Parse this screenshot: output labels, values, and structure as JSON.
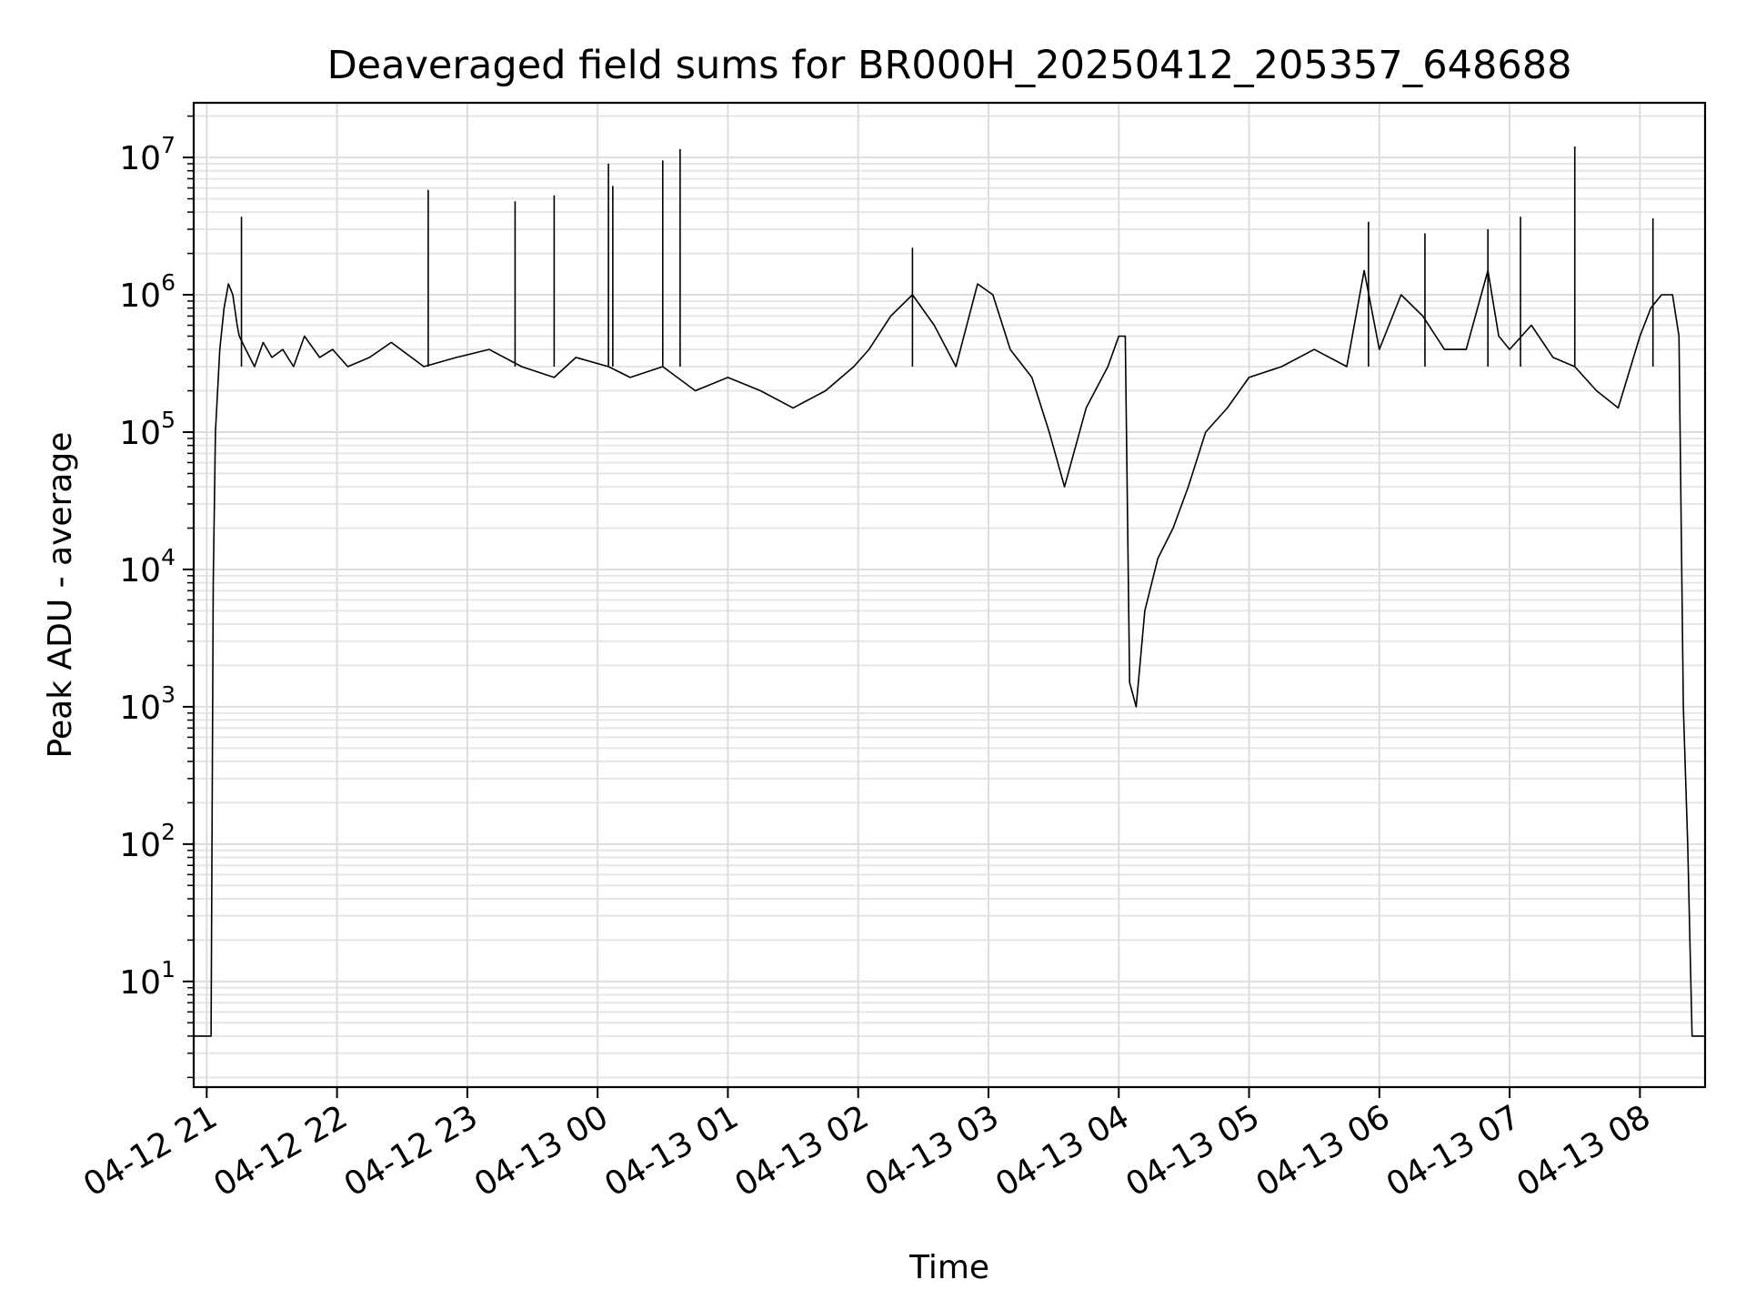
{
  "chart_data": {
    "type": "line",
    "title": "Deaveraged field sums for BR000H_20250412_205357_648688",
    "xlabel": "Time",
    "ylabel": "Peak ADU - average",
    "yscale": "log",
    "ylim": [
      1.7,
      25000000
    ],
    "xlim": [
      "2025-04-12 20:54",
      "2025-04-13 08:30"
    ],
    "grid": "on (major and minor)",
    "x_ticks": [
      "04-12 21",
      "04-12 22",
      "04-12 23",
      "04-13 00",
      "04-13 01",
      "04-13 02",
      "04-13 03",
      "04-13 04",
      "04-13 05",
      "04-13 06",
      "04-13 07",
      "04-13 08"
    ],
    "y_ticks": [
      {
        "base": "10",
        "exp": "1",
        "value": 10
      },
      {
        "base": "10",
        "exp": "2",
        "value": 100
      },
      {
        "base": "10",
        "exp": "3",
        "value": 1000
      },
      {
        "base": "10",
        "exp": "4",
        "value": 10000
      },
      {
        "base": "10",
        "exp": "5",
        "value": 100000
      },
      {
        "base": "10",
        "exp": "6",
        "value": 1000000
      },
      {
        "base": "10",
        "exp": "7",
        "value": 10000000
      }
    ],
    "series": [
      {
        "color": "#000000",
        "x": [
          "2025-04-12 20:54",
          "2025-04-12 21:02",
          "2025-04-12 21:03",
          "2025-04-12 21:04",
          "2025-04-12 21:06",
          "2025-04-12 21:08",
          "2025-04-12 21:10",
          "2025-04-12 21:12",
          "2025-04-12 21:14",
          "2025-04-12 21:15",
          "2025-04-12 21:18",
          "2025-04-12 21:22",
          "2025-04-12 21:26",
          "2025-04-12 21:30",
          "2025-04-12 21:35",
          "2025-04-12 21:40",
          "2025-04-12 21:45",
          "2025-04-12 21:52",
          "2025-04-12 21:58",
          "2025-04-12 22:05",
          "2025-04-12 22:15",
          "2025-04-12 22:25",
          "2025-04-12 22:40",
          "2025-04-12 22:55",
          "2025-04-12 23:10",
          "2025-04-12 23:25",
          "2025-04-12 23:40",
          "2025-04-12 23:50",
          "2025-04-13 00:05",
          "2025-04-13 00:15",
          "2025-04-13 00:30",
          "2025-04-13 00:45",
          "2025-04-13 01:00",
          "2025-04-13 01:15",
          "2025-04-13 01:30",
          "2025-04-13 01:45",
          "2025-04-13 01:58",
          "2025-04-13 02:05",
          "2025-04-13 02:15",
          "2025-04-13 02:25",
          "2025-04-13 02:35",
          "2025-04-13 02:45",
          "2025-04-13 02:55",
          "2025-04-13 03:02",
          "2025-04-13 03:10",
          "2025-04-13 03:20",
          "2025-04-13 03:28",
          "2025-04-13 03:35",
          "2025-04-13 03:45",
          "2025-04-13 03:55",
          "2025-04-13 04:00",
          "2025-04-13 04:03",
          "2025-04-13 04:05",
          "2025-04-13 04:08",
          "2025-04-13 04:12",
          "2025-04-13 04:18",
          "2025-04-13 04:25",
          "2025-04-13 04:32",
          "2025-04-13 04:40",
          "2025-04-13 04:50",
          "2025-04-13 05:00",
          "2025-04-13 05:15",
          "2025-04-13 05:30",
          "2025-04-13 05:45",
          "2025-04-13 05:53",
          "2025-04-13 06:00",
          "2025-04-13 06:10",
          "2025-04-13 06:20",
          "2025-04-13 06:30",
          "2025-04-13 06:40",
          "2025-04-13 06:50",
          "2025-04-13 06:55",
          "2025-04-13 07:00",
          "2025-04-13 07:10",
          "2025-04-13 07:20",
          "2025-04-13 07:30",
          "2025-04-13 07:40",
          "2025-04-13 07:50",
          "2025-04-13 08:00",
          "2025-04-13 08:05",
          "2025-04-13 08:10",
          "2025-04-13 08:15",
          "2025-04-13 08:18",
          "2025-04-13 08:20",
          "2025-04-13 08:22",
          "2025-04-13 08:24",
          "2025-04-13 08:30"
        ],
        "y": [
          4,
          4,
          8000,
          100000,
          400000,
          800000,
          1200000,
          1000000,
          600000,
          500000,
          400000,
          300000,
          450000,
          350000,
          400000,
          300000,
          500000,
          350000,
          400000,
          300000,
          350000,
          450000,
          300000,
          350000,
          400000,
          300000,
          250000,
          350000,
          300000,
          250000,
          300000,
          200000,
          250000,
          200000,
          150000,
          200000,
          300000,
          400000,
          700000,
          1000000,
          600000,
          300000,
          1200000,
          1000000,
          400000,
          250000,
          100000,
          40000,
          150000,
          300000,
          500000,
          500000,
          1500,
          1000,
          5000,
          12000,
          20000,
          40000,
          100000,
          150000,
          250000,
          300000,
          400000,
          300000,
          1500000,
          400000,
          1000000,
          700000,
          400000,
          400000,
          1500000,
          500000,
          400000,
          600000,
          350000,
          300000,
          200000,
          150000,
          500000,
          800000,
          1000000,
          1000000,
          500000,
          1000,
          100,
          4,
          4
        ]
      }
    ],
    "annotations": [
      {
        "x": "2025-04-12 21:16",
        "y": 3700000
      },
      {
        "x": "2025-04-12 22:42",
        "y": 5800000
      },
      {
        "x": "2025-04-12 23:22",
        "y": 4800000
      },
      {
        "x": "2025-04-12 23:40",
        "y": 5300000
      },
      {
        "x": "2025-04-13 00:05",
        "y": 9000000
      },
      {
        "x": "2025-04-13 00:07",
        "y": 6200000
      },
      {
        "x": "2025-04-13 00:30",
        "y": 9500000
      },
      {
        "x": "2025-04-13 00:38",
        "y": 11500000
      },
      {
        "x": "2025-04-13 02:25",
        "y": 2200000
      },
      {
        "x": "2025-04-13 05:55",
        "y": 3400000
      },
      {
        "x": "2025-04-13 06:21",
        "y": 2800000
      },
      {
        "x": "2025-04-13 06:50",
        "y": 3000000
      },
      {
        "x": "2025-04-13 07:05",
        "y": 3700000
      },
      {
        "x": "2025-04-13 07:30",
        "y": 12000000
      },
      {
        "x": "2025-04-13 08:06",
        "y": 3600000
      }
    ]
  }
}
